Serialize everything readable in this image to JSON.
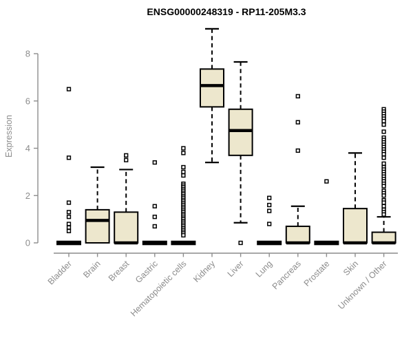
{
  "chart_data": {
    "type": "boxplot",
    "title": "ENSG00000248319 - RP11-205M3.3",
    "ylabel": "Expression",
    "xlabel": "",
    "yticks": [
      0,
      2,
      4,
      6,
      8
    ],
    "ylim": [
      0,
      9.3
    ],
    "grid": false,
    "legend": "none",
    "box_fill": "#EDE7CD",
    "box_stroke": "#000000",
    "axis_color": "#8c8c8c",
    "categories": [
      "Bladder",
      "Brain",
      "Breast",
      "Gastric",
      "Hematopoietic cells",
      "Kidney",
      "Liver",
      "Lung",
      "Pancreas",
      "Prostate",
      "Skin",
      "Unknown / Other"
    ],
    "boxes": [
      {
        "category": "Bladder",
        "whisker_low": 0,
        "q1": 0,
        "median": 0,
        "q3": 0,
        "whisker_high": 0,
        "outliers": [
          6.5,
          3.6,
          1.7,
          1.3,
          1.1,
          0.8,
          0.65,
          0.5
        ]
      },
      {
        "category": "Brain",
        "whisker_low": 0,
        "q1": 0,
        "median": 0.95,
        "q3": 1.4,
        "whisker_high": 3.2,
        "outliers": []
      },
      {
        "category": "Breast",
        "whisker_low": 0,
        "q1": 0,
        "median": 0,
        "q3": 1.3,
        "whisker_high": 3.1,
        "outliers": [
          3.7,
          3.5
        ]
      },
      {
        "category": "Gastric",
        "whisker_low": 0,
        "q1": 0,
        "median": 0,
        "q3": 0,
        "whisker_high": 0,
        "outliers": [
          3.4,
          1.55,
          1.1,
          0.7
        ]
      },
      {
        "category": "Hematopoietic cells",
        "whisker_low": 0,
        "q1": 0,
        "median": 0,
        "q3": 0,
        "whisker_high": 0,
        "outliers": [
          4.0,
          3.8,
          3.2,
          3.0,
          2.85,
          2.5,
          2.42,
          2.35,
          2.27,
          2.2,
          2.12,
          2.05,
          1.97,
          1.9,
          1.82,
          1.75,
          1.67,
          1.6,
          1.52,
          1.45,
          1.37,
          1.3,
          1.22,
          1.15,
          1.07,
          1.0,
          0.92,
          0.85,
          0.77,
          0.7,
          0.62,
          0.55,
          0.47,
          0.4,
          0.32
        ]
      },
      {
        "category": "Kidney",
        "whisker_low": 3.4,
        "q1": 5.75,
        "median": 6.65,
        "q3": 7.35,
        "whisker_high": 9.05,
        "outliers": []
      },
      {
        "category": "Liver",
        "whisker_low": 0.85,
        "q1": 3.7,
        "median": 4.75,
        "q3": 5.65,
        "whisker_high": 7.65,
        "outliers": [
          0.0
        ]
      },
      {
        "category": "Lung",
        "whisker_low": 0,
        "q1": 0,
        "median": 0,
        "q3": 0,
        "whisker_high": 0,
        "outliers": [
          1.9,
          1.6,
          1.35,
          0.8
        ]
      },
      {
        "category": "Pancreas",
        "whisker_low": 0,
        "q1": 0,
        "median": 0,
        "q3": 0.7,
        "whisker_high": 1.55,
        "outliers": [
          6.2,
          5.1,
          3.9
        ]
      },
      {
        "category": "Prostate",
        "whisker_low": 0,
        "q1": 0,
        "median": 0,
        "q3": 0,
        "whisker_high": 0,
        "outliers": [
          2.6
        ]
      },
      {
        "category": "Skin",
        "whisker_low": 0,
        "q1": 0,
        "median": 0,
        "q3": 1.45,
        "whisker_high": 3.8,
        "outliers": []
      },
      {
        "category": "Unknown / Other",
        "whisker_low": 0,
        "q1": 0,
        "median": 0,
        "q3": 0.45,
        "whisker_high": 1.1,
        "outliers": [
          5.65,
          5.55,
          5.45,
          5.35,
          5.25,
          5.15,
          5.0,
          4.7,
          4.45,
          4.35,
          4.25,
          4.15,
          4.05,
          3.95,
          3.85,
          3.75,
          3.6,
          3.35,
          3.2,
          3.1,
          3.0,
          2.9,
          2.8,
          2.7,
          2.6,
          2.5,
          2.4,
          2.2,
          2.1,
          2.0,
          1.8,
          1.7,
          1.55,
          1.4,
          1.3,
          1.2
        ]
      }
    ]
  }
}
